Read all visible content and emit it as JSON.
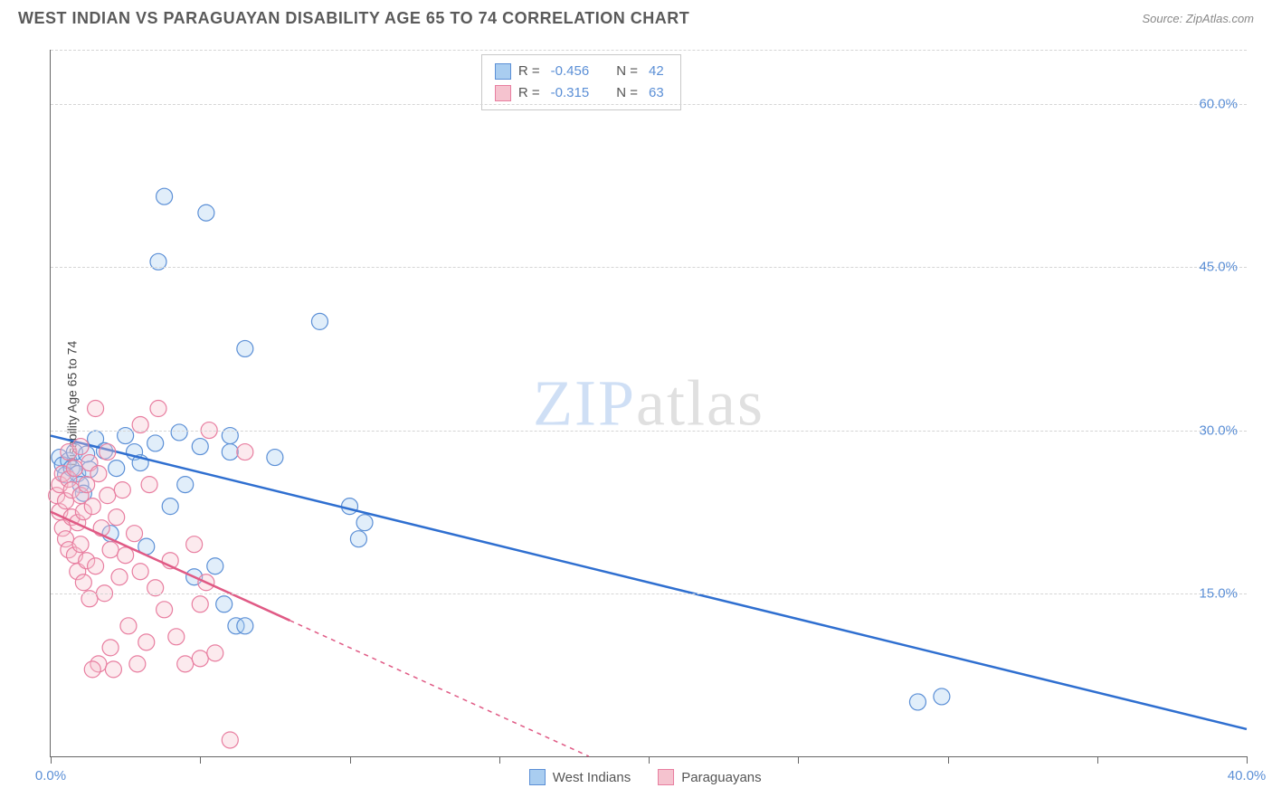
{
  "header": {
    "title": "WEST INDIAN VS PARAGUAYAN DISABILITY AGE 65 TO 74 CORRELATION CHART",
    "source": "Source: ZipAtlas.com"
  },
  "ylabel": "Disability Age 65 to 74",
  "chart": {
    "type": "scatter",
    "xlim": [
      0,
      40
    ],
    "ylim": [
      0,
      65
    ],
    "background_color": "#ffffff",
    "grid_color": "#d5d5d5",
    "grid_dash": "4,4",
    "axis_color": "#666666",
    "ytick_positions": [
      15,
      30,
      45,
      60
    ],
    "ytick_labels": [
      "15.0%",
      "30.0%",
      "45.0%",
      "60.0%"
    ],
    "xtick_positions": [
      0,
      5,
      10,
      15,
      20,
      25,
      30,
      35,
      40
    ],
    "xtick_labels_shown": {
      "0": "0.0%",
      "40": "40.0%"
    },
    "tick_label_color": "#5b8fd6",
    "tick_label_fontsize": 15,
    "marker_radius": 9,
    "marker_fill_opacity": 0.35,
    "marker_stroke_width": 1.2,
    "trend_line_width": 2.5
  },
  "series": [
    {
      "name": "West Indians",
      "color_fill": "#a9cdf0",
      "color_stroke": "#5b8fd6",
      "trend_color": "#2f6fd0",
      "R": "-0.456",
      "N": "42",
      "trend": {
        "x1": 0,
        "y1": 29.5,
        "x2": 40,
        "y2": 2.5,
        "dash_after_x": null
      },
      "points": [
        [
          0.3,
          27.5
        ],
        [
          0.4,
          26.8
        ],
        [
          0.5,
          25.9
        ],
        [
          0.6,
          27.2
        ],
        [
          0.7,
          26.5
        ],
        [
          0.8,
          28.0
        ],
        [
          0.9,
          26.0
        ],
        [
          1.0,
          25.0
        ],
        [
          1.1,
          24.2
        ],
        [
          1.2,
          27.8
        ],
        [
          1.3,
          26.4
        ],
        [
          1.5,
          29.2
        ],
        [
          1.8,
          28.1
        ],
        [
          2.0,
          20.5
        ],
        [
          2.2,
          26.5
        ],
        [
          2.5,
          29.5
        ],
        [
          2.8,
          28.0
        ],
        [
          3.0,
          27.0
        ],
        [
          3.2,
          19.3
        ],
        [
          3.5,
          28.8
        ],
        [
          3.6,
          45.5
        ],
        [
          3.8,
          51.5
        ],
        [
          4.0,
          23.0
        ],
        [
          4.3,
          29.8
        ],
        [
          4.5,
          25.0
        ],
        [
          5.0,
          28.5
        ],
        [
          5.2,
          50.0
        ],
        [
          5.5,
          17.5
        ],
        [
          5.8,
          14.0
        ],
        [
          6.0,
          28.0
        ],
        [
          6.2,
          12.0
        ],
        [
          6.5,
          12.0
        ],
        [
          6.5,
          37.5
        ],
        [
          7.5,
          27.5
        ],
        [
          9.0,
          40.0
        ],
        [
          10.0,
          23.0
        ],
        [
          10.3,
          20.0
        ],
        [
          10.5,
          21.5
        ],
        [
          29.0,
          5.0
        ],
        [
          29.8,
          5.5
        ],
        [
          6.0,
          29.5
        ],
        [
          4.8,
          16.5
        ]
      ]
    },
    {
      "name": "Paraguayans",
      "color_fill": "#f5c3cf",
      "color_stroke": "#e87ea0",
      "trend_color": "#e05a85",
      "R": "-0.315",
      "N": "63",
      "trend": {
        "x1": 0,
        "y1": 22.5,
        "x2": 18,
        "y2": 0,
        "dash_after_x": 8
      },
      "points": [
        [
          0.2,
          24.0
        ],
        [
          0.3,
          22.5
        ],
        [
          0.3,
          25.0
        ],
        [
          0.4,
          21.0
        ],
        [
          0.4,
          26.0
        ],
        [
          0.5,
          20.0
        ],
        [
          0.5,
          23.5
        ],
        [
          0.6,
          25.5
        ],
        [
          0.6,
          19.0
        ],
        [
          0.7,
          22.0
        ],
        [
          0.7,
          24.5
        ],
        [
          0.8,
          18.5
        ],
        [
          0.8,
          26.5
        ],
        [
          0.9,
          21.5
        ],
        [
          0.9,
          17.0
        ],
        [
          1.0,
          24.0
        ],
        [
          1.0,
          19.5
        ],
        [
          1.1,
          16.0
        ],
        [
          1.1,
          22.5
        ],
        [
          1.2,
          25.0
        ],
        [
          1.2,
          18.0
        ],
        [
          1.3,
          14.5
        ],
        [
          1.3,
          27.0
        ],
        [
          1.4,
          23.0
        ],
        [
          1.5,
          32.0
        ],
        [
          1.5,
          17.5
        ],
        [
          1.6,
          8.5
        ],
        [
          1.7,
          21.0
        ],
        [
          1.8,
          15.0
        ],
        [
          1.9,
          24.0
        ],
        [
          2.0,
          10.0
        ],
        [
          2.0,
          19.0
        ],
        [
          2.2,
          22.0
        ],
        [
          2.3,
          16.5
        ],
        [
          2.5,
          18.5
        ],
        [
          2.6,
          12.0
        ],
        [
          2.8,
          20.5
        ],
        [
          3.0,
          17.0
        ],
        [
          3.0,
          30.5
        ],
        [
          3.2,
          10.5
        ],
        [
          3.3,
          25.0
        ],
        [
          3.5,
          15.5
        ],
        [
          3.6,
          32.0
        ],
        [
          3.8,
          13.5
        ],
        [
          4.0,
          18.0
        ],
        [
          4.2,
          11.0
        ],
        [
          4.5,
          8.5
        ],
        [
          4.8,
          19.5
        ],
        [
          5.0,
          14.0
        ],
        [
          5.0,
          9.0
        ],
        [
          5.3,
          30.0
        ],
        [
          5.2,
          16.0
        ],
        [
          5.5,
          9.5
        ],
        [
          6.0,
          1.5
        ],
        [
          6.5,
          28.0
        ],
        [
          1.4,
          8.0
        ],
        [
          2.1,
          8.0
        ],
        [
          2.9,
          8.5
        ],
        [
          0.6,
          28.0
        ],
        [
          1.0,
          28.5
        ],
        [
          1.6,
          26.0
        ],
        [
          2.4,
          24.5
        ],
        [
          1.9,
          28.0
        ]
      ]
    }
  ],
  "legend_top": {
    "rows": [
      {
        "swatch_fill": "#a9cdf0",
        "swatch_border": "#5b8fd6",
        "R_label": "R =",
        "R": "-0.456",
        "N_label": "N =",
        "N": "42"
      },
      {
        "swatch_fill": "#f5c3cf",
        "swatch_border": "#e87ea0",
        "R_label": "R =",
        "R": "-0.315",
        "N_label": "N =",
        "N": "63"
      }
    ]
  },
  "legend_bottom": {
    "items": [
      {
        "swatch_fill": "#a9cdf0",
        "swatch_border": "#5b8fd6",
        "label": "West Indians"
      },
      {
        "swatch_fill": "#f5c3cf",
        "swatch_border": "#e87ea0",
        "label": "Paraguayans"
      }
    ]
  },
  "watermark": {
    "part1": "ZIP",
    "part2": "atlas"
  }
}
